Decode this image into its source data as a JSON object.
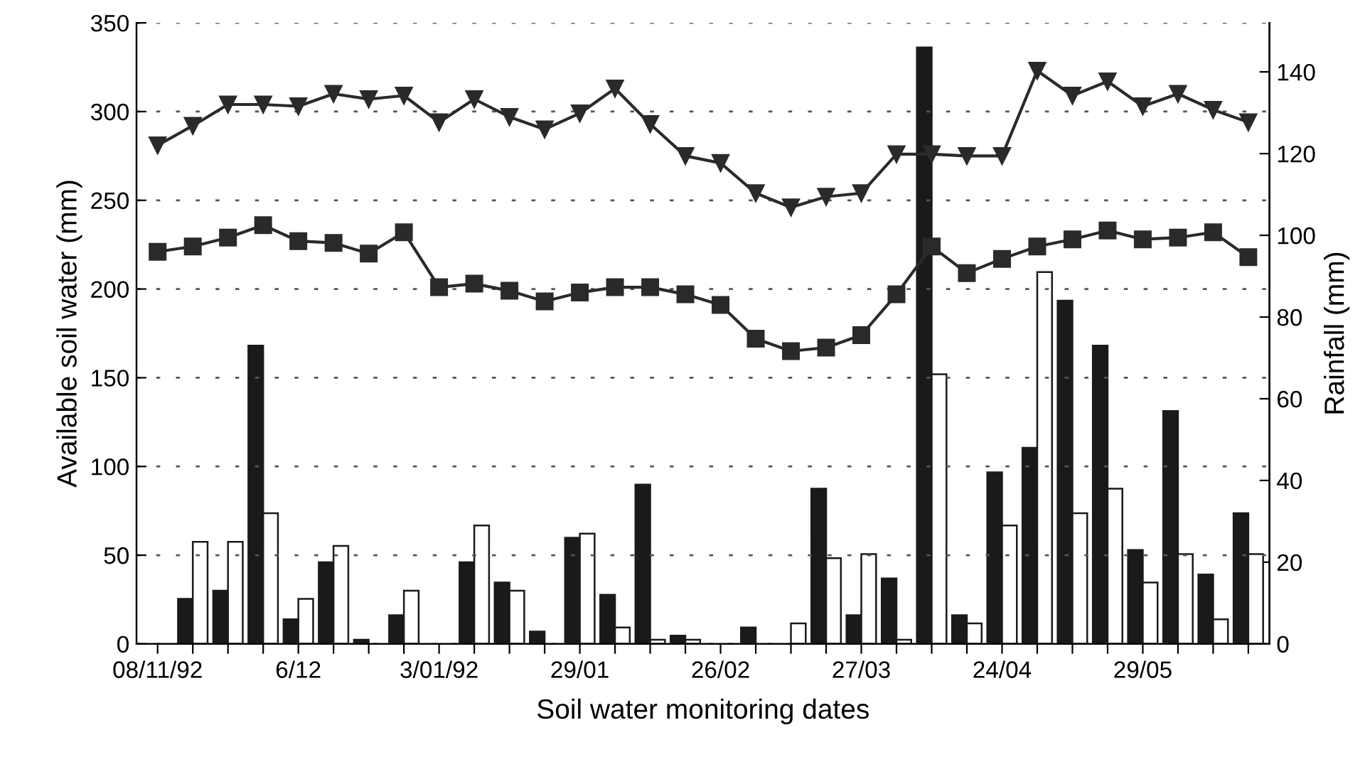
{
  "chart_data": {
    "type": "bar",
    "xlabel": "Soil water monitoring dates",
    "ylabel": "Available soil water (mm)",
    "y2label": "Rainfall (mm)",
    "categories": [
      "08/11/92",
      null,
      null,
      null,
      "6/12",
      null,
      null,
      null,
      "3/01/92",
      null,
      null,
      null,
      "29/01",
      null,
      null,
      null,
      "26/02",
      null,
      null,
      null,
      "27/03",
      null,
      null,
      null,
      "24/04",
      null,
      null,
      null,
      "29/05",
      null,
      null,
      null
    ],
    "series": [
      {
        "axis": "y2",
        "color": "#1a1a1a",
        "values": [
          null,
          11,
          13,
          73,
          6,
          20,
          1,
          7,
          0,
          20,
          15,
          3,
          26,
          12,
          39,
          2,
          0,
          4,
          0,
          38,
          7,
          16,
          146,
          7,
          42,
          48,
          84,
          73,
          23,
          57,
          17,
          32
        ]
      },
      {
        "axis": "y2",
        "color": "#ffffff",
        "values": [
          null,
          25,
          25,
          32,
          11,
          24,
          0,
          13,
          0,
          29,
          13,
          0,
          27,
          4,
          1,
          1,
          0,
          0,
          5,
          21,
          22,
          1,
          66,
          5,
          29,
          91,
          32,
          38,
          15,
          22,
          6,
          22
        ]
      },
      {
        "type": "line",
        "marker": "triangle",
        "color": "#2a2a2a",
        "values": [
          281,
          292,
          304,
          304,
          303,
          310,
          307,
          309,
          294,
          307,
          297,
          290,
          299,
          313,
          293,
          275,
          271,
          254,
          246,
          252,
          254,
          276,
          276,
          275,
          275,
          323,
          309,
          317,
          303,
          310,
          301,
          294
        ]
      },
      {
        "type": "line",
        "marker": "square",
        "color": "#2a2a2a",
        "values": [
          221,
          224,
          229,
          236,
          227,
          226,
          220,
          232,
          201,
          203,
          199,
          193,
          198,
          201,
          201,
          197,
          191,
          172,
          165,
          167,
          174,
          197,
          224,
          209,
          217,
          224,
          228,
          233,
          228,
          229,
          232,
          218
        ]
      }
    ],
    "ylim": [
      0,
      350
    ],
    "yticks": [
      0,
      50,
      100,
      150,
      200,
      250,
      300,
      350
    ],
    "y2lim": [
      0,
      152
    ],
    "y2ticks": [
      0,
      20,
      40,
      60,
      80,
      100,
      120,
      140
    ],
    "grid": "y",
    "legend": false
  }
}
